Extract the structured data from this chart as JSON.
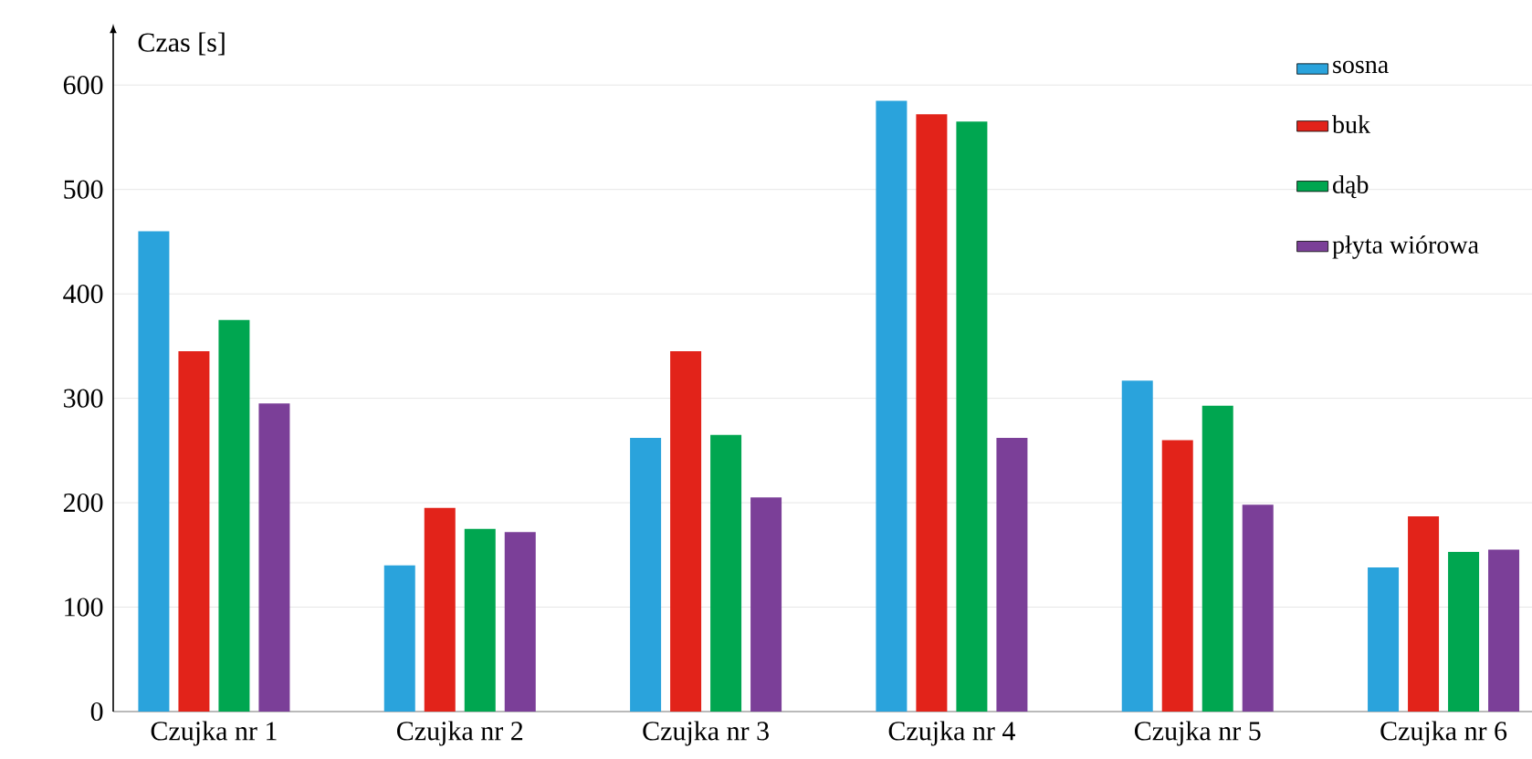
{
  "chart_data": {
    "type": "bar",
    "ylabel": "Czas [s]",
    "categories": [
      "Czujka nr 1",
      "Czujka nr 2",
      "Czujka nr 3",
      "Czujka nr 4",
      "Czujka nr 5",
      "Czujka nr 6"
    ],
    "series": [
      {
        "name": "sosna",
        "color": "#2aa3dc",
        "values": [
          460,
          140,
          262,
          585,
          317,
          138
        ]
      },
      {
        "name": "buk",
        "color": "#e2231a",
        "values": [
          345,
          195,
          345,
          572,
          260,
          187
        ]
      },
      {
        "name": "dąb",
        "color": "#00a650",
        "values": [
          375,
          175,
          265,
          565,
          293,
          153
        ]
      },
      {
        "name": "płyta wiórowa",
        "color": "#7b3f98",
        "values": [
          295,
          172,
          205,
          262,
          198,
          155
        ]
      }
    ],
    "ylim": [
      0,
      650
    ],
    "yticks": [
      0,
      100,
      200,
      300,
      400,
      500,
      600
    ],
    "grid": "y",
    "legend": "top right"
  }
}
